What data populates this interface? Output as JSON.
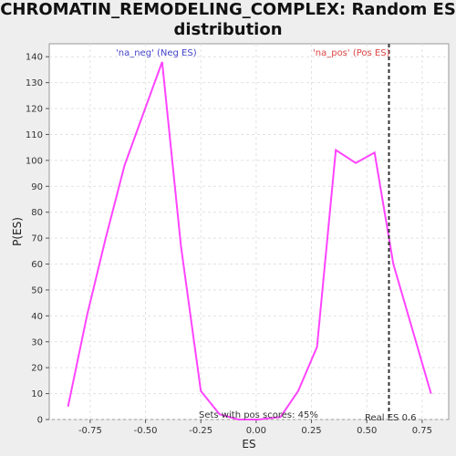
{
  "chart_data": {
    "type": "line",
    "title": "CHROMATIN_REMODELING_COMPLEX: Random ES distribution",
    "xlabel": "ES",
    "ylabel": "P(ES)",
    "xlim": [
      -0.935,
      0.87
    ],
    "ylim": [
      0,
      145
    ],
    "grid": true,
    "x_ticks": [
      "-0.75",
      "-0.50",
      "-0.25",
      "0.00",
      "0.25",
      "0.50",
      "0.75"
    ],
    "y_ticks": [
      "0",
      "10",
      "20",
      "30",
      "40",
      "50",
      "60",
      "70",
      "80",
      "90",
      "100",
      "110",
      "120",
      "130",
      "140"
    ],
    "series": [
      {
        "color": "#ff44ff",
        "x": [
          -0.85,
          -0.765,
          -0.68,
          -0.595,
          -0.51,
          -0.425,
          -0.34,
          -0.25,
          -0.165,
          -0.08,
          0.01,
          0.11,
          0.19,
          0.275,
          0.36,
          0.45,
          0.535,
          0.62,
          0.705,
          0.79
        ],
        "y": [
          5,
          40,
          70,
          98,
          118,
          138,
          67,
          11,
          2,
          0,
          0,
          1,
          11,
          28,
          104,
          99,
          103,
          60,
          35,
          10
        ]
      }
    ],
    "reference_line": {
      "x": 0.6,
      "label": "Real ES 0.6",
      "color": "#333333"
    },
    "annotations": {
      "neg_label": "'na_neg' (Neg ES)",
      "pos_label": "'na_pos' (Pos ES)",
      "pos_scores": "Sets with pos scores: 45%"
    },
    "colors": {
      "neg": "#4444cc",
      "pos": "#dd4444",
      "line": "#ff44ff"
    }
  }
}
